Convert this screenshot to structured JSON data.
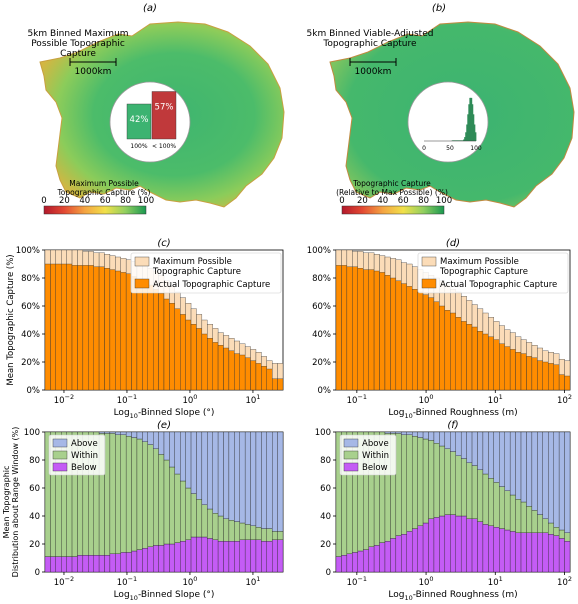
{
  "maps": [
    {
      "panel": "(a)",
      "title_lines": [
        "5km Binned Maximum",
        "Possible Topographic",
        "Capture"
      ],
      "scale_label": "1000km",
      "inset_type": "bar",
      "inset_bars": [
        {
          "label": "100%",
          "value": 42,
          "text": "42%",
          "color": "#3cb371"
        },
        {
          "label": "< 100%",
          "value": 57,
          "text": "57%",
          "color": "#c0393b"
        }
      ],
      "colorbar_lines": [
        "Maximum Possible",
        "Topographic Capture (%)"
      ],
      "colorbar_ticks": [
        "0",
        "20",
        "40",
        "60",
        "80",
        "100"
      ]
    },
    {
      "panel": "(b)",
      "title_lines": [
        "5km Binned Viable-Adjusted",
        "Topographic Capture"
      ],
      "scale_label": "1000km",
      "inset_type": "histogram",
      "inset_ticks": [
        "0",
        "50",
        "100"
      ],
      "colorbar_lines": [
        "Topographic Capture",
        "(Relative to Max Possible) (%)"
      ],
      "colorbar_ticks": [
        "0",
        "20",
        "40",
        "60",
        "80",
        "100"
      ]
    }
  ],
  "colors": {
    "max_capture": "#fbdcb8",
    "actual_capture": "#ff8c00",
    "above": "#a6b8e6",
    "within": "#a8d08d",
    "below": "#c45cf5",
    "map_green": "#3cb371",
    "map_red": "#c0393b"
  },
  "chart_data": [
    {
      "panel": "(c)",
      "type": "bar",
      "xscale": "log",
      "xlim": [
        0.005,
        30
      ],
      "x_ticks": [
        "10^-2",
        "10^-1",
        "10^0",
        "10^1"
      ],
      "xlabel": "Log10-Binned Slope (°)",
      "ylabel": "Mean Topographic Capture (%)",
      "ylim": [
        0,
        100
      ],
      "y_ticks": [
        "0%",
        "20%",
        "40%",
        "60%",
        "80%",
        "100%"
      ],
      "legend": "top-right",
      "series": [
        {
          "name": "Maximum Possible Topographic Capture",
          "values": [
            100,
            100,
            100,
            100,
            100,
            100,
            100,
            99,
            99,
            98,
            98,
            97,
            96,
            95,
            94,
            93,
            92,
            91,
            89,
            87,
            85,
            82,
            78,
            74,
            70,
            66,
            62,
            58,
            54,
            50,
            47,
            44,
            41,
            39,
            37,
            35,
            33,
            31,
            29,
            27,
            24,
            21,
            19,
            19
          ]
        },
        {
          "name": "Actual Topographic Capture",
          "values": [
            90,
            90,
            90,
            90,
            90,
            89,
            89,
            89,
            89,
            88,
            88,
            87,
            86,
            85,
            84,
            83,
            81,
            79,
            77,
            75,
            72,
            69,
            65,
            62,
            58,
            54,
            50,
            47,
            44,
            40,
            37,
            34,
            32,
            30,
            28,
            26,
            25,
            23,
            21,
            19,
            17,
            15,
            8,
            8
          ]
        }
      ]
    },
    {
      "panel": "(d)",
      "type": "bar",
      "xscale": "log",
      "xlim": [
        0.05,
        120
      ],
      "x_ticks": [
        "10^-1",
        "10^0",
        "10^1",
        "10^2"
      ],
      "xlabel": "Log10-Binned Roughness (m)",
      "ylabel": "",
      "ylim": [
        0,
        100
      ],
      "y_ticks": [
        "0%",
        "20%",
        "40%",
        "60%",
        "80%",
        "100%"
      ],
      "legend": "top-right",
      "series": [
        {
          "name": "Maximum Possible Topographic Capture",
          "values": [
            100,
            100,
            100,
            99,
            99,
            98,
            98,
            97,
            96,
            95,
            94,
            93,
            91,
            90,
            88,
            86,
            84,
            82,
            80,
            78,
            75,
            72,
            70,
            67,
            64,
            61,
            58,
            55,
            52,
            49,
            46,
            43,
            41,
            38,
            36,
            34,
            32,
            30,
            28,
            27,
            26,
            22,
            21
          ]
        },
        {
          "name": "Actual Topographic Capture",
          "values": [
            89,
            89,
            88,
            88,
            87,
            86,
            86,
            85,
            84,
            82,
            80,
            78,
            76,
            74,
            72,
            70,
            68,
            66,
            63,
            60,
            57,
            55,
            52,
            49,
            47,
            45,
            42,
            40,
            38,
            36,
            33,
            31,
            29,
            27,
            26,
            24,
            23,
            21,
            20,
            19,
            18,
            11,
            10
          ]
        }
      ]
    },
    {
      "panel": "(e)",
      "type": "bar",
      "xscale": "log",
      "xlim": [
        0.005,
        30
      ],
      "x_ticks": [
        "10^-2",
        "10^-1",
        "10^0",
        "10^1"
      ],
      "xlabel": "Log10-Binned Slope (°)",
      "ylabel_lines": [
        "Mean Topographic",
        "Distribution about Range Window (%)"
      ],
      "ylim": [
        0,
        100
      ],
      "y_ticks": [
        "0",
        "20",
        "40",
        "60",
        "80",
        "100"
      ],
      "legend": "top-left",
      "series": [
        {
          "name": "Above",
          "values": [
            0,
            0,
            0,
            0,
            0,
            0,
            0,
            0,
            0,
            0,
            1,
            1,
            1,
            2,
            2,
            3,
            4,
            5,
            7,
            9,
            12,
            16,
            20,
            25,
            30,
            35,
            40,
            44,
            48,
            52,
            55,
            58,
            60,
            62,
            63,
            64,
            65,
            66,
            67,
            68,
            69,
            69,
            71,
            71
          ]
        },
        {
          "name": "Within",
          "values": [
            89,
            89,
            89,
            89,
            89,
            89,
            88,
            88,
            88,
            88,
            87,
            87,
            86,
            85,
            84,
            83,
            81,
            79,
            76,
            73,
            69,
            65,
            60,
            55,
            49,
            43,
            37,
            31,
            27,
            23,
            21,
            19,
            18,
            16,
            15,
            14,
            12,
            11,
            10,
            9,
            9,
            9,
            6,
            6
          ]
        },
        {
          "name": "Below",
          "values": [
            11,
            11,
            11,
            11,
            11,
            11,
            12,
            12,
            12,
            12,
            12,
            12,
            13,
            13,
            14,
            14,
            15,
            16,
            17,
            18,
            19,
            19,
            20,
            20,
            21,
            22,
            23,
            25,
            25,
            25,
            24,
            23,
            22,
            22,
            22,
            22,
            23,
            23,
            23,
            23,
            22,
            22,
            23,
            23
          ]
        }
      ]
    },
    {
      "panel": "(f)",
      "type": "bar",
      "xscale": "log",
      "xlim": [
        0.05,
        120
      ],
      "x_ticks": [
        "10^-1",
        "10^0",
        "10^1",
        "10^2"
      ],
      "xlabel": "Log10-Binned Roughness (m)",
      "ylabel": "",
      "ylim": [
        0,
        100
      ],
      "y_ticks": [
        "0",
        "20",
        "40",
        "60",
        "80",
        "100"
      ],
      "legend": "top-left",
      "series": [
        {
          "name": "Above",
          "values": [
            0,
            0,
            0,
            0,
            0,
            0,
            0,
            0,
            0,
            1,
            1,
            1,
            2,
            2,
            3,
            4,
            5,
            6,
            8,
            10,
            12,
            14,
            17,
            19,
            22,
            24,
            27,
            30,
            33,
            36,
            39,
            42,
            45,
            48,
            50,
            53,
            56,
            59,
            62,
            65,
            68,
            70,
            72
          ]
        },
        {
          "name": "Within",
          "values": [
            89,
            88,
            87,
            86,
            85,
            84,
            82,
            81,
            79,
            77,
            75,
            73,
            71,
            69,
            66,
            63,
            60,
            56,
            53,
            50,
            47,
            45,
            43,
            41,
            40,
            38,
            37,
            36,
            34,
            32,
            30,
            28,
            26,
            24,
            22,
            19,
            16,
            13,
            10,
            8,
            6,
            6,
            6
          ]
        },
        {
          "name": "Below",
          "values": [
            11,
            12,
            13,
            14,
            15,
            16,
            18,
            19,
            21,
            22,
            24,
            26,
            27,
            29,
            31,
            33,
            35,
            38,
            39,
            40,
            41,
            41,
            40,
            40,
            38,
            38,
            36,
            34,
            33,
            32,
            31,
            30,
            29,
            28,
            28,
            28,
            28,
            28,
            28,
            27,
            26,
            24,
            22
          ]
        }
      ]
    }
  ]
}
